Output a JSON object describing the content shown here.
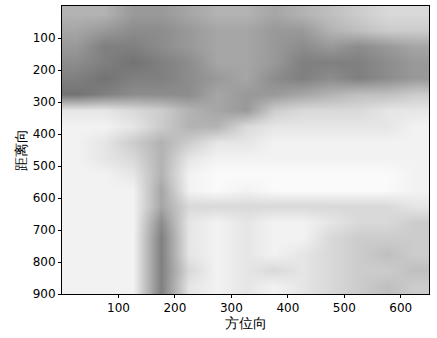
{
  "chart_data": {
    "type": "heatmap",
    "x_label": "方位向",
    "y_label": "距离向",
    "x": [
      25,
      75,
      125,
      175,
      225,
      275,
      325,
      375,
      425,
      475,
      525,
      575,
      625
    ],
    "y": [
      25,
      75,
      125,
      175,
      225,
      275,
      325,
      375,
      425,
      475,
      525,
      575,
      625,
      675,
      725,
      775,
      825,
      875
    ],
    "cells": [
      [
        0.3,
        0.3,
        0.4,
        0.4,
        0.35,
        0.3,
        0.3,
        0.35,
        0.3,
        0.25,
        0.2,
        0.15,
        0.15
      ],
      [
        0.35,
        0.4,
        0.45,
        0.45,
        0.4,
        0.35,
        0.35,
        0.4,
        0.4,
        0.3,
        0.25,
        0.2,
        0.2
      ],
      [
        0.4,
        0.5,
        0.5,
        0.45,
        0.4,
        0.35,
        0.35,
        0.4,
        0.45,
        0.4,
        0.45,
        0.4,
        0.35
      ],
      [
        0.45,
        0.5,
        0.55,
        0.5,
        0.45,
        0.35,
        0.35,
        0.4,
        0.5,
        0.5,
        0.5,
        0.45,
        0.4
      ],
      [
        0.5,
        0.55,
        0.5,
        0.5,
        0.45,
        0.4,
        0.35,
        0.45,
        0.5,
        0.45,
        0.5,
        0.45,
        0.4
      ],
      [
        0.55,
        0.5,
        0.45,
        0.45,
        0.45,
        0.35,
        0.4,
        0.4,
        0.35,
        0.3,
        0.25,
        0.25,
        0.2
      ],
      [
        0.1,
        0.1,
        0.15,
        0.2,
        0.3,
        0.35,
        0.4,
        0.2,
        0.15,
        0.15,
        0.15,
        0.1,
        0.1
      ],
      [
        0.05,
        0.05,
        0.1,
        0.2,
        0.3,
        0.3,
        0.15,
        0.1,
        0.1,
        0.1,
        0.1,
        0.1,
        0.05
      ],
      [
        0.05,
        0.1,
        0.2,
        0.3,
        0.2,
        0.1,
        0.1,
        0.05,
        0.05,
        0.05,
        0.05,
        0.05,
        0.05
      ],
      [
        0.05,
        0.1,
        0.15,
        0.3,
        0.1,
        0.05,
        0.05,
        0.05,
        0.05,
        0.05,
        0.05,
        0.05,
        0.05
      ],
      [
        0.05,
        0.05,
        0.1,
        0.3,
        0.05,
        0.02,
        0.02,
        0.02,
        0.02,
        0.02,
        0.02,
        0.02,
        0.05
      ],
      [
        0.05,
        0.05,
        0.05,
        0.35,
        0.05,
        0.02,
        0.05,
        0.02,
        0.02,
        0.02,
        0.02,
        0.02,
        0.05
      ],
      [
        0.05,
        0.05,
        0.05,
        0.35,
        0.15,
        0.15,
        0.15,
        0.15,
        0.15,
        0.15,
        0.15,
        0.15,
        0.1
      ],
      [
        0.05,
        0.05,
        0.05,
        0.45,
        0.1,
        0.05,
        0.1,
        0.05,
        0.05,
        0.1,
        0.15,
        0.15,
        0.2
      ],
      [
        0.05,
        0.05,
        0.05,
        0.5,
        0.1,
        0.05,
        0.1,
        0.05,
        0.05,
        0.15,
        0.2,
        0.2,
        0.2
      ],
      [
        0.05,
        0.05,
        0.05,
        0.5,
        0.1,
        0.05,
        0.1,
        0.05,
        0.1,
        0.15,
        0.2,
        0.25,
        0.2
      ],
      [
        0.05,
        0.05,
        0.05,
        0.5,
        0.15,
        0.05,
        0.1,
        0.15,
        0.1,
        0.15,
        0.2,
        0.2,
        0.25
      ],
      [
        0.05,
        0.05,
        0.05,
        0.5,
        0.1,
        0.05,
        0.1,
        0.05,
        0.1,
        0.15,
        0.2,
        0.25,
        0.2
      ]
    ],
    "zlim": [
      0,
      1
    ],
    "color": "#000000",
    "xlim": [
      0,
      650
    ],
    "xticks": [
      100,
      200,
      300,
      400,
      500,
      600
    ],
    "ylim": [
      900,
      0
    ],
    "yticks": [
      100,
      200,
      300,
      400,
      500,
      600,
      700,
      800,
      900
    ],
    "grid": false
  }
}
